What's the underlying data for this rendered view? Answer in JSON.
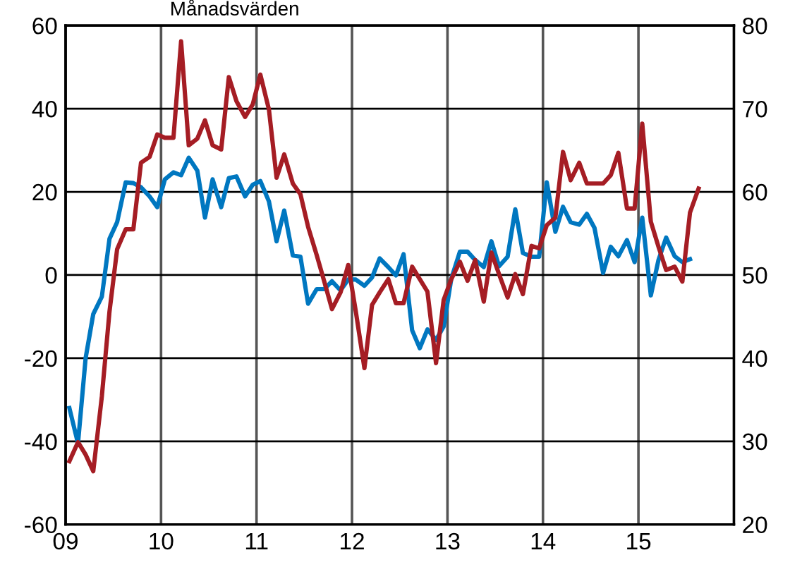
{
  "chart_data": {
    "type": "line",
    "title": "Månadsvärden",
    "x": [
      2009.04,
      2009.13,
      2009.21,
      2009.29,
      2009.38,
      2009.46,
      2009.54,
      2009.63,
      2009.71,
      2009.79,
      2009.88,
      2009.96,
      2010.04,
      2010.13,
      2010.21,
      2010.29,
      2010.38,
      2010.46,
      2010.54,
      2010.63,
      2010.71,
      2010.79,
      2010.88,
      2010.96,
      2011.04,
      2011.13,
      2011.21,
      2011.29,
      2011.38,
      2011.46,
      2011.54,
      2011.63,
      2011.71,
      2011.79,
      2011.88,
      2011.96,
      2012.04,
      2012.13,
      2012.21,
      2012.29,
      2012.38,
      2012.46,
      2012.54,
      2012.63,
      2012.71,
      2012.79,
      2012.88,
      2012.96,
      2013.04,
      2013.13,
      2013.21,
      2013.29,
      2013.38,
      2013.46,
      2013.54,
      2013.63,
      2013.71,
      2013.79,
      2013.88,
      2013.96,
      2014.04,
      2014.13,
      2014.21,
      2014.29,
      2014.38,
      2014.46,
      2014.54,
      2014.63,
      2014.71,
      2014.79,
      2014.88,
      2014.96,
      2015.04,
      2015.13,
      2015.21,
      2015.29,
      2015.38,
      2015.46,
      2015.54,
      2015.63
    ],
    "series": [
      {
        "color": "#0077c0",
        "values": [
          -32,
          -40.5,
          -20,
          -9.4,
          -5.2,
          8.7,
          12.7,
          22.3,
          22.1,
          21.1,
          18.9,
          16.3,
          23,
          24.7,
          24,
          28.2,
          25.1,
          13.8,
          23,
          16.3,
          23.3,
          23.7,
          18.9,
          21.7,
          22.6,
          17.7,
          8.1,
          15.5,
          4.7,
          4.4,
          -6.9,
          -3.4,
          -3.4,
          -1.5,
          -3.7,
          -1.1,
          -1.1,
          -2.6,
          -0.6,
          4,
          1.9,
          -0.1,
          5,
          -13.3,
          -17.6,
          -13.1,
          -15.6,
          -12.4,
          -0.9,
          5.6,
          5.6,
          3.6,
          1.9,
          8.1,
          2.1,
          4.4,
          15.8,
          5.3,
          4.4,
          4.4,
          22.3,
          10.4,
          16.4,
          12.7,
          12.1,
          14.7,
          11.3,
          0.5,
          6.8,
          4.5,
          8.4,
          3.1,
          13.8,
          -4.9,
          3.6,
          9,
          4.5,
          3.1,
          3.8,
          null
        ]
      },
      {
        "color": "#a51d24",
        "axis": "y2",
        "values": [
          27.6,
          29.9,
          28.4,
          26.4,
          35.4,
          45.6,
          53.1,
          55.5,
          55.5,
          63.5,
          64.2,
          66.9,
          66.5,
          66.5,
          78.1,
          65.6,
          66.4,
          68.6,
          65.6,
          65.1,
          73.8,
          70.9,
          69,
          70.5,
          74.1,
          69.9,
          61.7,
          64.5,
          61,
          59.7,
          55.8,
          52.4,
          49.2,
          45.9,
          47.9,
          51.2,
          45.6,
          38.8,
          46.4,
          47.9,
          49.5,
          46.6,
          46.6,
          51,
          49.5,
          48,
          39.4,
          47,
          49.5,
          51.6,
          49.3,
          51.8,
          46.8,
          52.7,
          50.1,
          47.3,
          50.1,
          47.7,
          53.5,
          53.2,
          56,
          56.9,
          64.8,
          61.4,
          63.5,
          61,
          61,
          61,
          62,
          64.7,
          58,
          58,
          68.2,
          56.4,
          53.4,
          50.6,
          51,
          49.2,
          57.5,
          60.4
        ]
      }
    ],
    "xlim": [
      2009,
      2016
    ],
    "xticks": [
      {
        "value": 2009,
        "label": "09"
      },
      {
        "value": 2010,
        "label": "10"
      },
      {
        "value": 2011,
        "label": "11"
      },
      {
        "value": 2012,
        "label": "12"
      },
      {
        "value": 2013,
        "label": "13"
      },
      {
        "value": 2014,
        "label": "14"
      },
      {
        "value": 2015,
        "label": "15"
      }
    ],
    "ylim": [
      -60,
      60
    ],
    "yticks": [
      -60,
      -40,
      -20,
      0,
      20,
      40,
      60
    ],
    "y2lim": [
      20,
      80
    ],
    "y2ticks": [
      20,
      30,
      40,
      50,
      60,
      70,
      80
    ],
    "grid": true,
    "line_style": "solid"
  }
}
